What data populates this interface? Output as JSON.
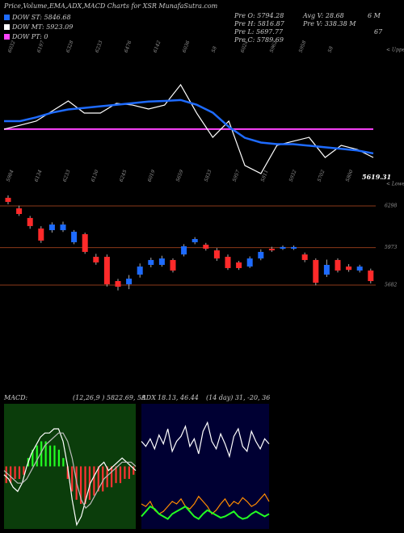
{
  "header": "Price,Volume,EMA,ADX,MACD Charts for XSR MunafaSutra.com",
  "legend": [
    {
      "label": "DOW ST: 5846.68",
      "color": "#1e6bff"
    },
    {
      "label": "DOW MT: 5923.09",
      "color": "#ffffff"
    },
    {
      "label": "DOW PT: 0",
      "color": "#ff44ff"
    }
  ],
  "info": [
    "Pre O: 5794.28",
    "Pre H: 5816.87",
    "Pre L: 5697.77",
    "Pre C: 5789.69",
    "Avg V: 28.68",
    "Pre V: 338.38 M",
    "6 M",
    "67"
  ],
  "chart_data": [
    {
      "type": "line",
      "ylim": [
        5500,
        6500
      ],
      "top_labels": [
        "6032",
        "6197",
        "6328",
        "6233",
        "6476",
        "6142",
        "6036",
        "58",
        "6024",
        "5962",
        "5958",
        "58"
      ],
      "bottom_labels": [
        "5984",
        "6134",
        "6233",
        "6130",
        "6245",
        "6019",
        "5659",
        "5833",
        "5957",
        "5811",
        "5932",
        "5702",
        "5800"
      ],
      "last_label": "5619.31",
      "upper_label": "< Upper",
      "lower_label": "< Lower",
      "level": 5885,
      "level_color": "#ff44ff",
      "series": [
        {
          "color": "#ffffff",
          "values": [
            5885,
            5910,
            5936,
            6000,
            6064,
            5987,
            5987,
            6049,
            6038,
            6013,
            6038,
            6167,
            5987,
            5833,
            5936,
            5654,
            5603,
            5782,
            5808,
            5833,
            5705,
            5782,
            5756,
            5705
          ]
        },
        {
          "color": "#1e6bff",
          "values": [
            5936,
            5936,
            5960,
            5990,
            6010,
            6020,
            6030,
            6040,
            6050,
            6060,
            6064,
            6070,
            6040,
            5990,
            5900,
            5830,
            5800,
            5790,
            5790,
            5780,
            5770,
            5760,
            5750,
            5731
          ]
        }
      ]
    },
    {
      "type": "candlestick",
      "ylim": [
        5575,
        6392
      ],
      "yticks": [
        6298,
        5973,
        5682
      ],
      "level_color": "#8b3a1a",
      "up_color": "#1e6bff",
      "down_color": "#ff2a2a",
      "open": [
        6361,
        6279,
        6204,
        6122,
        6109,
        6109,
        6015,
        6078,
        5902,
        5902,
        5713,
        5688,
        5763,
        5839,
        5839,
        5877,
        5920,
        6015,
        5996,
        5952,
        5902,
        5858,
        5826,
        5889,
        5965,
        5965,
        5965,
        5920,
        5877,
        5763,
        5877,
        5826,
        5795,
        5795
      ],
      "high": [
        6380,
        6300,
        6220,
        6140,
        6170,
        6175,
        6110,
        6090,
        5925,
        5920,
        5730,
        5760,
        5850,
        5895,
        5910,
        5890,
        6000,
        6055,
        6010,
        5970,
        5920,
        5870,
        5905,
        5960,
        5980,
        5990,
        5990,
        5935,
        5890,
        5880,
        5890,
        5845,
        5840,
        5810
      ],
      "low": [
        6310,
        6220,
        6120,
        6010,
        6090,
        6095,
        6000,
        5925,
        5840,
        5670,
        5640,
        5650,
        5740,
        5820,
        5825,
        5780,
        5905,
        6000,
        5950,
        5870,
        5800,
        5800,
        5815,
        5875,
        5940,
        5955,
        5955,
        5860,
        5680,
        5745,
        5780,
        5785,
        5780,
        5695
      ],
      "close": [
        6329,
        6235,
        6141,
        6028,
        6153,
        6153,
        6097,
        5940,
        5858,
        5688,
        5669,
        5732,
        5826,
        5877,
        5889,
        5795,
        5984,
        6040,
        5965,
        5889,
        5814,
        5814,
        5889,
        5940,
        5952,
        5978,
        5978,
        5877,
        5700,
        5839,
        5795,
        5800,
        5826,
        5713
      ]
    },
    {
      "type": "macd",
      "title": "MACD:",
      "subtitle": "(12,26,9 ) 5822.69, 58",
      "ylim": [
        -15,
        15
      ],
      "background": "#0b3d0b",
      "up_color": "#22ff22",
      "down_color": "#ff3333",
      "histogram": [
        -4,
        -4,
        -3,
        -3,
        -2,
        2,
        4,
        5,
        6,
        6,
        5,
        5,
        4,
        2,
        -3,
        -6,
        -8,
        -9,
        -9,
        -8,
        -7,
        -6,
        -6,
        -5,
        -5,
        -4,
        -4,
        -3,
        -3,
        -2
      ],
      "series": [
        {
          "color": "#ffffff",
          "values": [
            -2,
            -3,
            -5,
            -6,
            -4,
            0,
            3,
            5,
            7,
            8,
            8,
            9,
            9,
            6,
            0,
            -8,
            -14,
            -12,
            -8,
            -4,
            -2,
            0,
            1,
            -1,
            0,
            1,
            2,
            1,
            0,
            -1
          ]
        },
        {
          "color": "#bbbbbb",
          "values": [
            -1,
            -2,
            -3,
            -4,
            -4,
            -3,
            -1,
            1,
            3,
            5,
            6,
            7,
            8,
            8,
            6,
            2,
            -4,
            -8,
            -10,
            -9,
            -7,
            -5,
            -3,
            -2,
            -1,
            0,
            1,
            1,
            1,
            0
          ]
        }
      ]
    },
    {
      "type": "line",
      "title": "ADX",
      "subtitle": "18.13, 46.44",
      "note": "(14 day) 31, -20, 36",
      "ylim": [
        0,
        100
      ],
      "background": "#000033",
      "series": [
        {
          "color": "#ffffff",
          "values": [
            70,
            66,
            72,
            64,
            75,
            68,
            80,
            62,
            70,
            74,
            82,
            66,
            72,
            60,
            78,
            85,
            70,
            64,
            76,
            68,
            58,
            74,
            80,
            66,
            62,
            78,
            70,
            64,
            72,
            68
          ]
        },
        {
          "color": "#ff8c00",
          "values": [
            20,
            18,
            22,
            15,
            12,
            14,
            18,
            22,
            20,
            24,
            18,
            16,
            20,
            26,
            22,
            18,
            12,
            15,
            20,
            24,
            18,
            22,
            20,
            25,
            22,
            18,
            20,
            24,
            28,
            22
          ]
        },
        {
          "color": "#22ff22",
          "values": [
            10,
            14,
            18,
            16,
            12,
            10,
            8,
            12,
            14,
            16,
            18,
            14,
            10,
            8,
            12,
            15,
            13,
            11,
            9,
            10,
            12,
            14,
            10,
            8,
            9,
            12,
            14,
            12,
            10,
            12
          ]
        }
      ]
    }
  ]
}
